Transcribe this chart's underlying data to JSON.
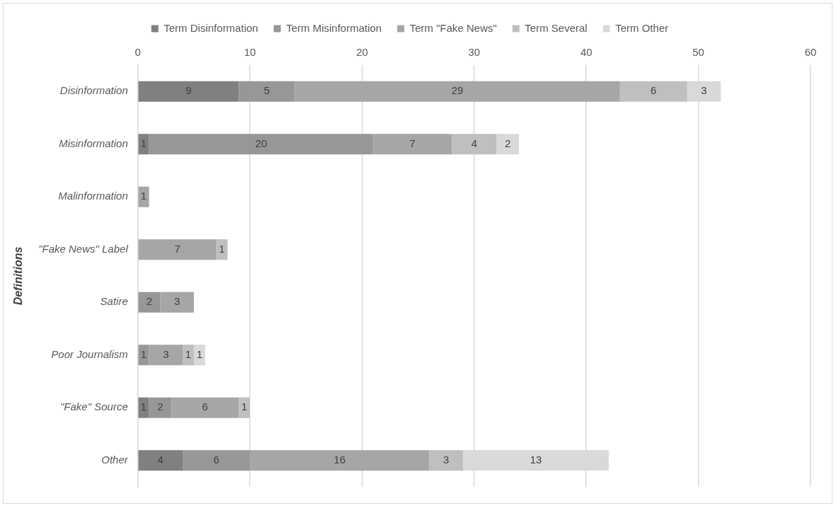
{
  "chart_data": {
    "type": "bar",
    "orientation": "horizontal",
    "stacked": true,
    "ylabel": "Definitions",
    "categories": [
      "Disinformation",
      "Misinformation",
      "Malinformation",
      "\"Fake News\" Label",
      "Satire",
      "Poor Journalism",
      "\"Fake\" Source",
      "Other"
    ],
    "series": [
      {
        "name": "Term Disinformation",
        "color": "#808080",
        "values": [
          9,
          1,
          null,
          null,
          null,
          null,
          1,
          4
        ]
      },
      {
        "name": "Term Misinformation",
        "color": "#979797",
        "values": [
          5,
          20,
          null,
          null,
          2,
          1,
          2,
          6
        ]
      },
      {
        "name": "Term \"Fake News\"",
        "color": "#a6a6a6",
        "values": [
          29,
          7,
          1,
          7,
          3,
          3,
          6,
          16
        ]
      },
      {
        "name": "Term Several",
        "color": "#bfbfbf",
        "values": [
          6,
          4,
          null,
          1,
          null,
          1,
          1,
          3
        ]
      },
      {
        "name": "Term Other",
        "color": "#d9d9d9",
        "values": [
          3,
          2,
          null,
          null,
          null,
          1,
          null,
          13
        ]
      }
    ],
    "xlim": [
      0,
      60
    ],
    "xticks": [
      0,
      10,
      20,
      30,
      40,
      50,
      60
    ],
    "grid": "x",
    "legend": "top",
    "data_labels": true
  }
}
